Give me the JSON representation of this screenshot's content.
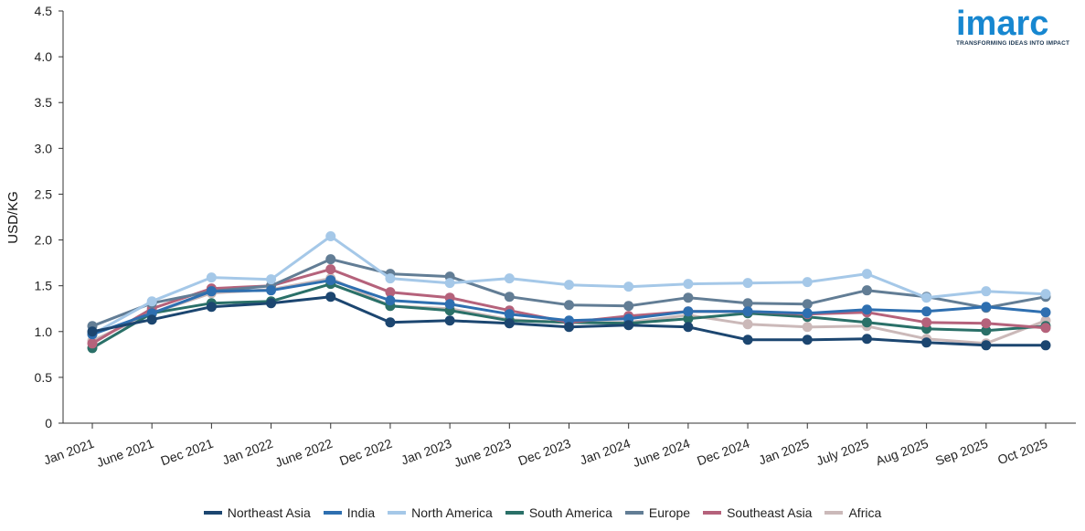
{
  "logo": {
    "word": "imarc",
    "tagline": "TRANSFORMING IDEAS INTO IMPACT"
  },
  "chart_data": {
    "type": "line",
    "title": "",
    "xlabel": "",
    "ylabel": "USD/KG",
    "ylim": [
      0,
      4.5
    ],
    "yticks": [
      "0",
      "0.5",
      "1.0",
      "1.5",
      "2.0",
      "2.5",
      "3.0",
      "3.5",
      "4.0",
      "4.5"
    ],
    "grid": false,
    "legend_position": "bottom",
    "categories": [
      "Jan 2021",
      "June 2021",
      "Dec 2021",
      "Jan 2022",
      "June 2022",
      "Dec 2022",
      "Jan 2023",
      "June 2023",
      "Dec 2023",
      "Jan 2024",
      "June 2024",
      "Dec 2024",
      "Jan 2025",
      "July 2025",
      "Aug 2025",
      "Sep 2025",
      "Oct 2025"
    ],
    "series": [
      {
        "name": "Africa",
        "color": "#cbb9b9",
        "values": [
          0.9,
          1.2,
          1.42,
          1.46,
          1.58,
          1.28,
          1.25,
          1.13,
          1.1,
          1.1,
          1.18,
          1.08,
          1.05,
          1.06,
          0.92,
          0.87,
          1.12
        ]
      },
      {
        "name": "South America",
        "color": "#2a7068",
        "values": [
          0.82,
          1.2,
          1.31,
          1.33,
          1.52,
          1.28,
          1.23,
          1.12,
          1.1,
          1.09,
          1.14,
          1.2,
          1.16,
          1.1,
          1.03,
          1.01,
          1.06
        ]
      },
      {
        "name": "Southeast Asia",
        "color": "#b5627b",
        "values": [
          0.87,
          1.25,
          1.47,
          1.5,
          1.68,
          1.43,
          1.37,
          1.23,
          1.1,
          1.17,
          1.22,
          1.22,
          1.19,
          1.21,
          1.1,
          1.09,
          1.04
        ]
      },
      {
        "name": "Europe",
        "color": "#627d95",
        "values": [
          1.06,
          1.31,
          1.44,
          1.5,
          1.79,
          1.63,
          1.6,
          1.38,
          1.29,
          1.28,
          1.37,
          1.31,
          1.3,
          1.45,
          1.38,
          1.26,
          1.38
        ]
      },
      {
        "name": "North America",
        "color": "#a5c8e8",
        "values": [
          0.97,
          1.33,
          1.59,
          1.57,
          2.04,
          1.58,
          1.53,
          1.58,
          1.51,
          1.49,
          1.52,
          1.53,
          1.54,
          1.63,
          1.37,
          1.44,
          1.41
        ]
      },
      {
        "name": "India",
        "color": "#2e6fb0",
        "values": [
          0.97,
          1.2,
          1.44,
          1.45,
          1.56,
          1.34,
          1.3,
          1.19,
          1.12,
          1.14,
          1.22,
          1.22,
          1.2,
          1.24,
          1.22,
          1.27,
          1.21
        ]
      },
      {
        "name": "Northeast Asia",
        "color": "#1c4670",
        "values": [
          1.0,
          1.13,
          1.27,
          1.31,
          1.38,
          1.1,
          1.12,
          1.09,
          1.05,
          1.07,
          1.05,
          0.91,
          0.91,
          0.92,
          0.88,
          0.85,
          0.85
        ]
      }
    ],
    "legend_order": [
      "Northeast Asia",
      "India",
      "North America",
      "South America",
      "Europe",
      "Southeast Asia",
      "Africa"
    ]
  }
}
